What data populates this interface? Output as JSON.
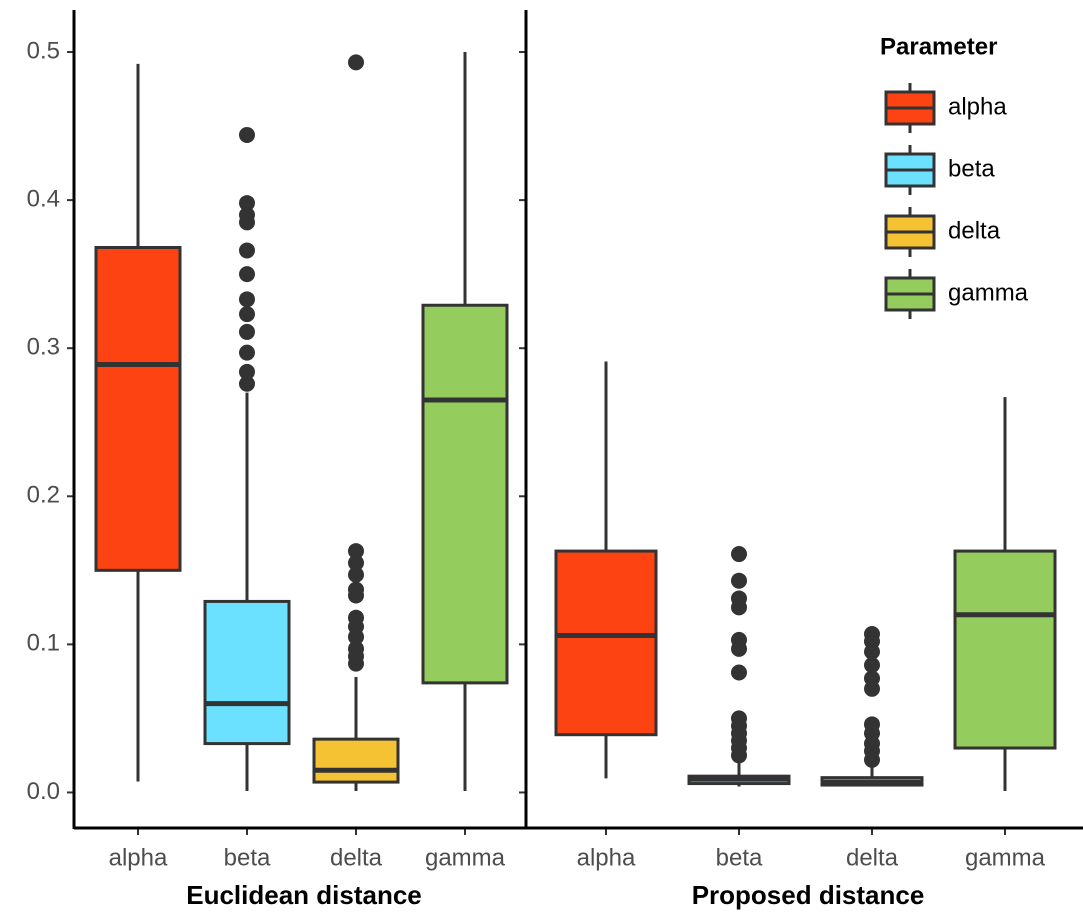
{
  "chart_data": [
    {
      "type": "box",
      "xlabel": "Euclidean distance",
      "categories": [
        "alpha",
        "beta",
        "delta",
        "gamma"
      ],
      "colors": [
        "#fc4311",
        "#6be1ff",
        "#f5c234",
        "#94cd5e"
      ],
      "ylim": [
        -0.024,
        0.525
      ],
      "yticks": [
        {
          "value": 0,
          "label": "0.0"
        },
        0.1,
        0.2,
        0.3,
        0.4,
        0.5
      ],
      "boxes": [
        {
          "whislo": 0.0074,
          "q1": 0.15,
          "med": 0.289,
          "q3": 0.368,
          "whishi": 0.492,
          "fliers": []
        },
        {
          "whislo": 0.001,
          "q1": 0.033,
          "med": 0.06,
          "q3": 0.129,
          "whishi": 0.27,
          "fliers": [
            0.276,
            0.284,
            0.297,
            0.311,
            0.323,
            0.333,
            0.35,
            0.366,
            0.385,
            0.39,
            0.398,
            0.444
          ]
        },
        {
          "whislo": 0.001,
          "q1": 0.007,
          "med": 0.015,
          "q3": 0.036,
          "whishi": 0.078,
          "fliers": [
            0.087,
            0.092,
            0.097,
            0.105,
            0.112,
            0.118,
            0.133,
            0.137,
            0.147,
            0.155,
            0.163,
            0.493
          ]
        },
        {
          "whislo": 0.001,
          "q1": 0.074,
          "med": 0.265,
          "q3": 0.329,
          "whishi": 0.5,
          "fliers": []
        }
      ]
    },
    {
      "type": "box",
      "xlabel": "Proposed distance",
      "categories": [
        "alpha",
        "beta",
        "delta",
        "gamma"
      ],
      "colors": [
        "#fc4311",
        "#6be1ff",
        "#f5c234",
        "#94cd5e"
      ],
      "ylim": [
        -0.024,
        0.525
      ],
      "legend": {
        "title": "Parameter",
        "position": "top-right"
      },
      "boxes": [
        {
          "whislo": 0.0095,
          "q1": 0.039,
          "med": 0.106,
          "q3": 0.163,
          "whishi": 0.291,
          "fliers": []
        },
        {
          "whislo": 0.004,
          "q1": 0.006,
          "med": 0.009,
          "q3": 0.011,
          "whishi": 0.02,
          "fliers": [
            0.025,
            0.03,
            0.035,
            0.04,
            0.045,
            0.05,
            0.081,
            0.097,
            0.103,
            0.125,
            0.131,
            0.143,
            0.161
          ]
        },
        {
          "whislo": 0.004,
          "q1": 0.005,
          "med": 0.007,
          "q3": 0.01,
          "whishi": 0.018,
          "fliers": [
            0.022,
            0.028,
            0.033,
            0.04,
            0.046,
            0.07,
            0.077,
            0.086,
            0.095,
            0.102,
            0.107
          ]
        },
        {
          "whislo": 0.001,
          "q1": 0.03,
          "med": 0.12,
          "q3": 0.163,
          "whishi": 0.267,
          "fliers": []
        }
      ]
    }
  ]
}
